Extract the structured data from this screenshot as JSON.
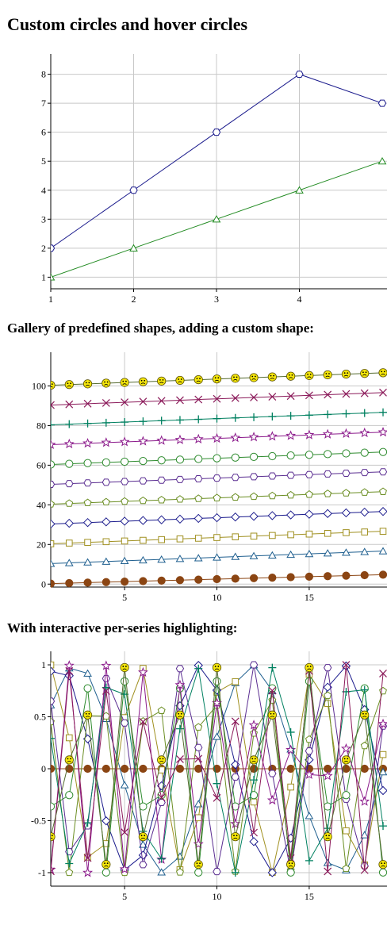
{
  "headings": {
    "title": "Custom circles and hover circles",
    "gallery": "Gallery of predefined shapes, adding a custom shape:",
    "interactive": "With interactive per-series highlighting:"
  },
  "chart_data": [
    {
      "type": "line",
      "x": [
        1,
        2,
        3,
        4,
        5
      ],
      "xlim": [
        1,
        5
      ],
      "ylim": [
        0.6,
        8.7
      ],
      "xticks": [
        1,
        2,
        3,
        4
      ],
      "yticks": [
        1,
        2,
        3,
        4,
        5,
        6,
        7,
        8
      ],
      "grid": true,
      "series": [
        {
          "values": [
            2,
            4,
            6,
            8,
            7
          ],
          "color": "#1a1a8c",
          "marker": "hexagon"
        },
        {
          "values": [
            1,
            2,
            3,
            4,
            5
          ],
          "color": "#228b22",
          "marker": "triangle"
        }
      ]
    },
    {
      "type": "line",
      "x": [
        0,
        1,
        2,
        3,
        4,
        5,
        6,
        7,
        8,
        9,
        10,
        11,
        12,
        13,
        14,
        15,
        16,
        17,
        18,
        19
      ],
      "xlim": [
        1,
        19.3
      ],
      "ylim": [
        -1.5,
        117
      ],
      "xticks": [
        5,
        10,
        15
      ],
      "yticks": [
        0,
        20,
        40,
        60,
        80,
        100
      ],
      "grid": true,
      "series": [
        {
          "start": 0,
          "step": 0.25,
          "color": "#8b4513",
          "marker": "filled-circle"
        },
        {
          "start": 10,
          "step": 0.35,
          "color": "#1f5f8f",
          "marker": "triangle"
        },
        {
          "start": 20,
          "step": 0.35,
          "color": "#a09020",
          "marker": "square"
        },
        {
          "start": 30,
          "step": 0.35,
          "color": "#1a1a8c",
          "marker": "diamond"
        },
        {
          "start": 40,
          "step": 0.35,
          "color": "#6b8e23",
          "marker": "pentagon"
        },
        {
          "start": 50,
          "step": 0.35,
          "color": "#5a2d91",
          "marker": "hexagon"
        },
        {
          "start": 60,
          "step": 0.35,
          "color": "#2e8b2e",
          "marker": "circle"
        },
        {
          "start": 70,
          "step": 0.35,
          "color": "#8b1a8b",
          "marker": "star"
        },
        {
          "start": 80,
          "step": 0.35,
          "color": "#008060",
          "marker": "plus"
        },
        {
          "start": 90,
          "step": 0.35,
          "color": "#8b1a5a",
          "marker": "cross"
        },
        {
          "start": 100,
          "step": 0.35,
          "color": "#556b2f",
          "marker": "face"
        }
      ]
    },
    {
      "type": "line",
      "x": [
        0,
        1,
        2,
        3,
        4,
        5,
        6,
        7,
        8,
        9,
        10,
        11,
        12,
        13,
        14,
        15,
        16,
        17,
        18,
        19
      ],
      "xlim": [
        1,
        19.3
      ],
      "ylim": [
        -1.13,
        1.13
      ],
      "xticks": [
        5,
        10,
        15
      ],
      "yticks": [
        -1,
        -0.5,
        0,
        0.5,
        1
      ],
      "ytick_labels": [
        "-1",
        "-0.5",
        "0",
        "0.5",
        "1"
      ],
      "grid": true,
      "series": [
        {
          "flat": 0,
          "color": "#8b4513",
          "marker": "filled-circle"
        },
        {
          "amp": 1,
          "freq": 0.105,
          "phase": 0.0,
          "color": "#1f5f8f",
          "marker": "triangle"
        },
        {
          "amp": 1,
          "freq": 0.21,
          "phase": 0.2,
          "color": "#a09020",
          "marker": "square"
        },
        {
          "amp": 1,
          "freq": 0.13,
          "phase": 0.4,
          "color": "#1a1a8c",
          "marker": "diamond"
        },
        {
          "amp": 1,
          "freq": 0.33,
          "phase": 0.6,
          "color": "#6b8e23",
          "marker": "pentagon"
        },
        {
          "amp": 1,
          "freq": 0.26,
          "phase": 0.8,
          "color": "#5a2d91",
          "marker": "hexagon"
        },
        {
          "amp": 1,
          "freq": 0.4,
          "phase": 1.0,
          "color": "#2e8b2e",
          "marker": "circle"
        },
        {
          "amp": 1,
          "freq": 0.52,
          "phase": 1.2,
          "color": "#8b1a8b",
          "marker": "star"
        },
        {
          "amp": 1,
          "freq": 0.23,
          "phase": 1.4,
          "color": "#008060",
          "marker": "plus"
        },
        {
          "amp": 1,
          "freq": 0.47,
          "phase": 1.6,
          "color": "#8b1a5a",
          "marker": "cross"
        },
        {
          "amp": 1,
          "freq": 0.6,
          "phase": 1.8,
          "color": "#556b2f",
          "marker": "face"
        }
      ]
    }
  ]
}
